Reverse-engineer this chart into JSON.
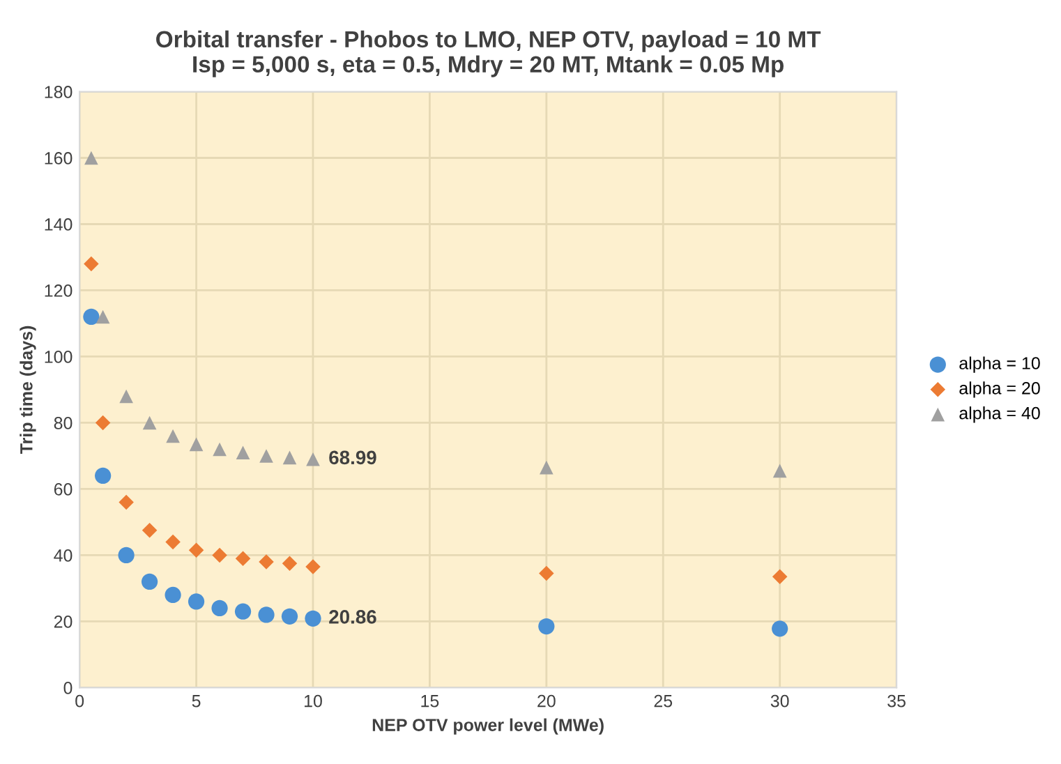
{
  "chart_data": {
    "type": "scatter",
    "title": "Orbital transfer - Phobos to LMO, NEP OTV, payload = 10 MT\nIsp = 5,000 s, eta = 0.5, Mdry = 20 MT, Mtank = 0.05 Mp",
    "xlabel": "NEP OTV power level (MWe)",
    "ylabel": "Trip time (days)",
    "x": [
      0.5,
      1,
      2,
      3,
      4,
      5,
      6,
      7,
      8,
      9,
      10,
      20,
      30
    ],
    "series": [
      {
        "name": "alpha = 10",
        "color": "#4a90d4",
        "marker": "circle",
        "values": [
          112,
          64,
          40,
          32,
          28,
          26,
          24,
          23,
          22,
          21.5,
          20.86,
          18.5,
          17.8
        ]
      },
      {
        "name": "alpha = 20",
        "color": "#ec7b33",
        "marker": "diamond",
        "values": [
          128,
          80,
          56,
          47.5,
          44,
          41.5,
          40,
          39,
          38,
          37.5,
          36.5,
          34.5,
          33.5
        ]
      },
      {
        "name": "alpha = 40",
        "color": "#a0a0a0",
        "marker": "triangle",
        "values": [
          160,
          112,
          88,
          80,
          76,
          73.5,
          72,
          71,
          70,
          69.5,
          68.99,
          66.5,
          65.5
        ]
      }
    ],
    "annotations": [
      {
        "text": "68.99",
        "x": 10,
        "y": 68.99
      },
      {
        "text": "20.86",
        "x": 10,
        "y": 20.86
      }
    ],
    "xlim": [
      0,
      35
    ],
    "xticks": [
      0,
      5,
      10,
      15,
      20,
      25,
      30,
      35
    ],
    "ylim": [
      0,
      180
    ],
    "yticks": [
      0,
      20,
      40,
      60,
      80,
      100,
      120,
      140,
      160,
      180
    ],
    "grid": true,
    "legend": "right"
  }
}
